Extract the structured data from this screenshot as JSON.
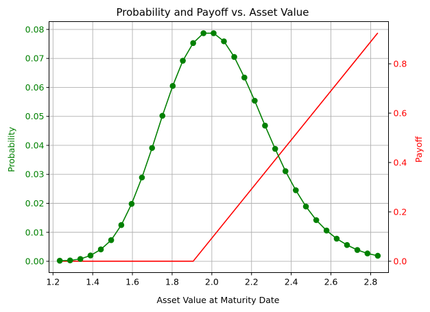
{
  "chart_data": {
    "type": "line",
    "title": "Probability and Payoff vs. Asset Value",
    "xlabel": "Asset Value at Maturity Date",
    "xlim": [
      1.18,
      2.89
    ],
    "xticks": [
      1.2,
      1.4,
      1.6,
      1.8,
      2.0,
      2.2,
      2.4,
      2.6,
      2.8
    ],
    "xtick_labels": [
      "1.2",
      "1.4",
      "1.6",
      "1.8",
      "2.0",
      "2.2",
      "2.4",
      "2.6",
      "2.8"
    ],
    "grid": true,
    "left_axis": {
      "label": "Probability",
      "color": "#008000",
      "lim": [
        -0.0039,
        0.0827
      ],
      "ticks": [
        0.0,
        0.01,
        0.02,
        0.03,
        0.04,
        0.05,
        0.06,
        0.07,
        0.08
      ],
      "tick_labels": [
        "0.00",
        "0.01",
        "0.02",
        "0.03",
        "0.04",
        "0.05",
        "0.06",
        "0.07",
        "0.08"
      ]
    },
    "right_axis": {
      "label": "Payoff",
      "color": "#ff0000",
      "lim": [
        -0.046,
        0.971
      ],
      "ticks": [
        0.0,
        0.2,
        0.4,
        0.6,
        0.8
      ],
      "tick_labels": [
        "0.0",
        "0.2",
        "0.4",
        "0.6",
        "0.8"
      ]
    },
    "series": [
      {
        "axis": "left",
        "color": "#008000",
        "marker": "circle",
        "x": [
          1.234,
          1.286,
          1.338,
          1.389,
          1.441,
          1.493,
          1.544,
          1.596,
          1.648,
          1.699,
          1.751,
          1.803,
          1.854,
          1.906,
          1.958,
          2.009,
          2.061,
          2.113,
          2.164,
          2.216,
          2.268,
          2.319,
          2.371,
          2.423,
          2.474,
          2.526,
          2.578,
          2.629,
          2.681,
          2.733,
          2.784,
          2.836
        ],
        "values": [
          0.0002,
          0.0003,
          0.0008,
          0.002,
          0.0041,
          0.0073,
          0.0125,
          0.0198,
          0.0289,
          0.0391,
          0.0502,
          0.0605,
          0.0692,
          0.0753,
          0.0787,
          0.0787,
          0.0759,
          0.0705,
          0.0634,
          0.0554,
          0.0468,
          0.0388,
          0.0311,
          0.0245,
          0.0189,
          0.0142,
          0.0106,
          0.0078,
          0.0056,
          0.0039,
          0.0027,
          0.0019
        ]
      },
      {
        "axis": "right",
        "color": "#ff0000",
        "marker": "none",
        "x": [
          1.234,
          1.906,
          2.836
        ],
        "values": [
          0.0,
          0.0,
          0.925
        ]
      }
    ]
  }
}
